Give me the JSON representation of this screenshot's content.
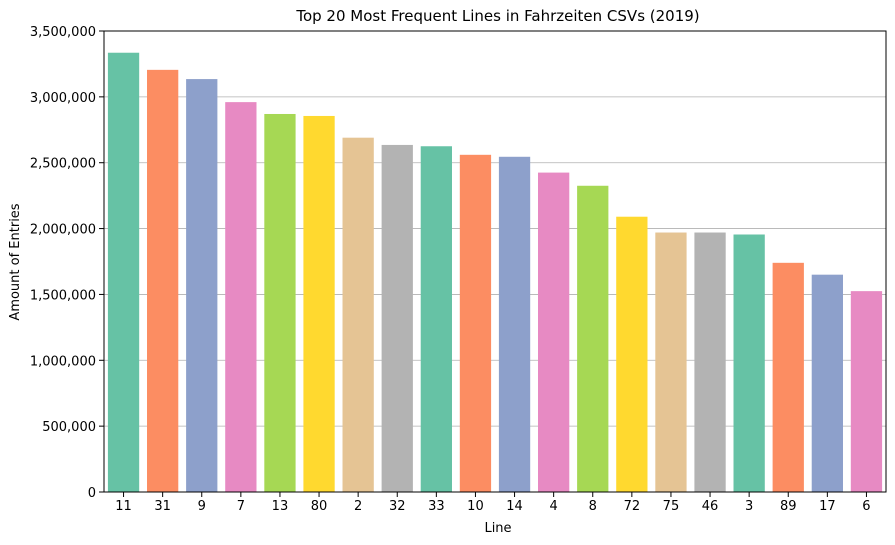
{
  "chart_data": {
    "type": "bar",
    "title": "Top 20 Most Frequent Lines in Fahrzeiten CSVs (2019)",
    "xlabel": "Line",
    "ylabel": "Amount of Entries",
    "categories": [
      "11",
      "31",
      "9",
      "7",
      "13",
      "80",
      "2",
      "32",
      "33",
      "10",
      "14",
      "4",
      "8",
      "72",
      "75",
      "46",
      "3",
      "89",
      "17",
      "6"
    ],
    "values": [
      3335000,
      3205000,
      3135000,
      2960000,
      2870000,
      2855000,
      2690000,
      2635000,
      2625000,
      2560000,
      2545000,
      2425000,
      2325000,
      2090000,
      1970000,
      1970000,
      1955000,
      1740000,
      1650000,
      1525000
    ],
    "ylim": [
      0,
      3500000
    ],
    "yticks": [
      0,
      500000,
      1000000,
      1500000,
      2000000,
      2500000,
      3000000,
      3500000
    ],
    "ytick_labels": [
      "0",
      "500,000",
      "1,000,000",
      "1,500,000",
      "2,000,000",
      "2,500,000",
      "3,000,000",
      "3,500,000"
    ],
    "grid": "horizontal",
    "palette": [
      "#66c2a5",
      "#fc8d62",
      "#8da0cb",
      "#e78ac3",
      "#a6d854",
      "#ffd92f",
      "#e5c494",
      "#b3b3b3"
    ]
  }
}
